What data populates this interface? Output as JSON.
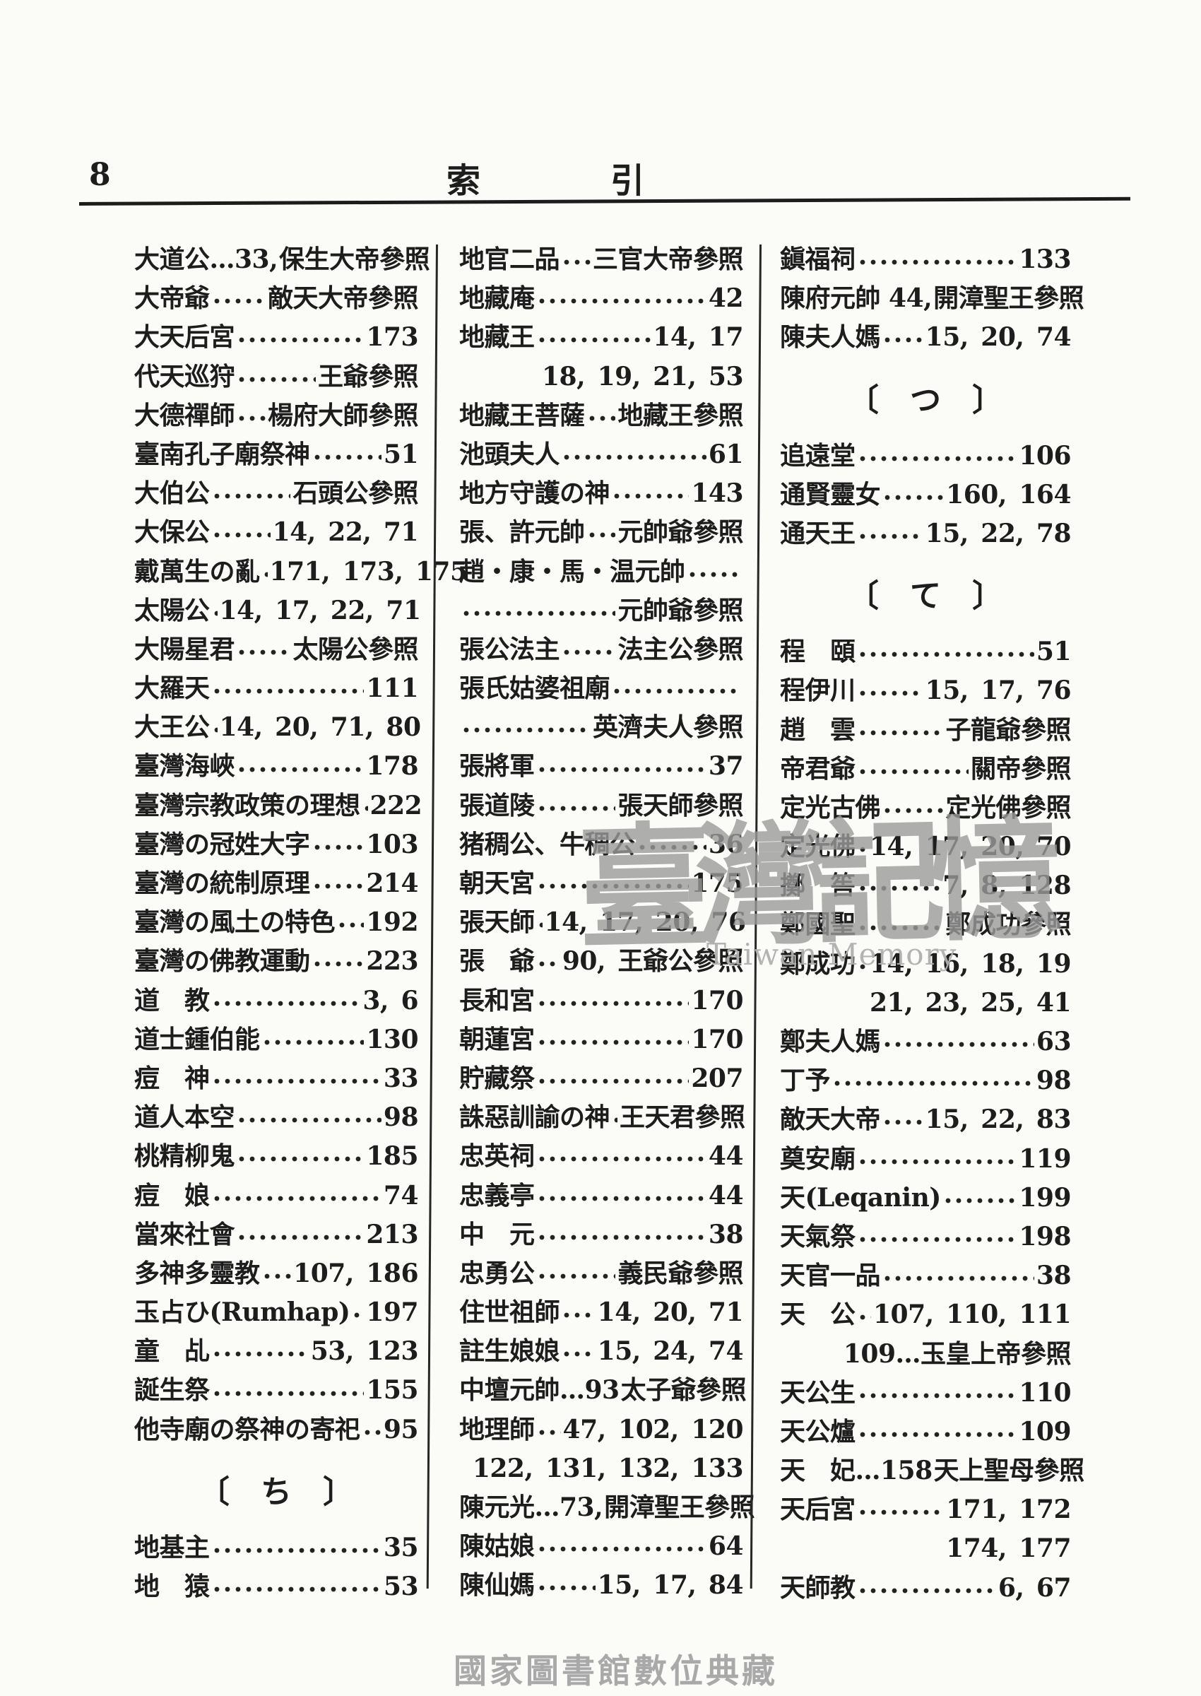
{
  "header": {
    "page_number": "8",
    "title_char_1": "索",
    "title_char_2": "引"
  },
  "watermark": {
    "main": "臺灣記憶",
    "sub": "Taiwan Memory"
  },
  "footer": {
    "text": "國家圖書館數位典藏"
  },
  "columns": [
    {
      "rows": [
        {
          "k": "e",
          "l": "大道公…33,",
          "lead": "s",
          "r": "保生大帝參照"
        },
        {
          "k": "e",
          "l": "大帝爺",
          "lead": "d",
          "r": "敵天大帝參照"
        },
        {
          "k": "e",
          "l": "大天后宮",
          "lead": "d",
          "r": "173"
        },
        {
          "k": "e",
          "l": "代天巡狩",
          "lead": "d",
          "r": "王爺參照"
        },
        {
          "k": "e",
          "l": "大德禪師",
          "lead": "d",
          "r": "楊府大師參照"
        },
        {
          "k": "e",
          "l": "臺南孔子廟祭神",
          "lead": "d",
          "r": "51"
        },
        {
          "k": "e",
          "l": "大伯公",
          "lead": "d",
          "r": "石頭公參照"
        },
        {
          "k": "e",
          "l": "大保公",
          "lead": "d",
          "r": "14, 22, 71"
        },
        {
          "k": "e",
          "l": "戴萬生の亂",
          "lead": "d",
          "r": "171, 173, 175"
        },
        {
          "k": "e",
          "l": "太陽公",
          "lead": "d",
          "r": "14, 17, 22, 71"
        },
        {
          "k": "e",
          "l": "大陽星君",
          "lead": "d",
          "r": "太陽公參照"
        },
        {
          "k": "e",
          "l": "大羅天",
          "lead": "d",
          "r": "111"
        },
        {
          "k": "e",
          "l": "大王公",
          "lead": "d",
          "r": "14, 20, 71, 80"
        },
        {
          "k": "e",
          "l": "臺灣海峽",
          "lead": "d",
          "r": "178"
        },
        {
          "k": "e",
          "l": "臺灣宗教政策の理想",
          "lead": "d",
          "r": "222"
        },
        {
          "k": "e",
          "l": "臺灣の冠姓大字",
          "lead": "d",
          "r": "103"
        },
        {
          "k": "e",
          "l": "臺灣の統制原理",
          "lead": "d",
          "r": "214"
        },
        {
          "k": "e",
          "l": "臺灣の風土の特色",
          "lead": "d",
          "r": "192"
        },
        {
          "k": "e",
          "l": "臺灣の佛教運動",
          "lead": "d",
          "r": "223"
        },
        {
          "k": "e",
          "l": "道　教",
          "lead": "d",
          "r": "3, 6"
        },
        {
          "k": "e",
          "l": "道士鍾伯能",
          "lead": "d",
          "r": "130"
        },
        {
          "k": "e",
          "l": "痘　神",
          "lead": "d",
          "r": "33"
        },
        {
          "k": "e",
          "l": "道人本空",
          "lead": "d",
          "r": "98"
        },
        {
          "k": "e",
          "l": "桃精柳鬼",
          "lead": "d",
          "r": "185"
        },
        {
          "k": "e",
          "l": "痘　娘",
          "lead": "d",
          "r": "74"
        },
        {
          "k": "e",
          "l": "當來社會",
          "lead": "d",
          "r": "213"
        },
        {
          "k": "e",
          "l": "多神多靈教",
          "lead": "d",
          "r": "107, 186"
        },
        {
          "k": "e",
          "l": "玉占ひ(Rumhap)",
          "lead": "d",
          "r": "197"
        },
        {
          "k": "e",
          "l": "童　乩",
          "lead": "d",
          "r": "53, 123"
        },
        {
          "k": "e",
          "l": "誕生祭",
          "lead": "d",
          "r": "155"
        },
        {
          "k": "e",
          "l": "他寺廟の祭神の寄祀",
          "lead": "d",
          "r": "95"
        },
        {
          "k": "s",
          "label": "〔　ち　〕"
        },
        {
          "k": "e",
          "l": "地基主",
          "lead": "d",
          "r": "35"
        },
        {
          "k": "e",
          "l": "地　猿",
          "lead": "d",
          "r": "53"
        }
      ]
    },
    {
      "rows": [
        {
          "k": "e",
          "l": "地官二品",
          "lead": "d",
          "r": "三官大帝參照"
        },
        {
          "k": "e",
          "l": "地藏庵",
          "lead": "d",
          "r": "42"
        },
        {
          "k": "e",
          "l": "地藏王",
          "lead": "d",
          "r": "14, 17"
        },
        {
          "k": "e",
          "l": "",
          "lead": "s",
          "r": "18, 19, 21, 53"
        },
        {
          "k": "e",
          "l": "地藏王菩薩",
          "lead": "d",
          "r": "地藏王參照"
        },
        {
          "k": "e",
          "l": "池頭夫人",
          "lead": "d",
          "r": "61"
        },
        {
          "k": "e",
          "l": "地方守護の神",
          "lead": "d",
          "r": "143"
        },
        {
          "k": "e",
          "l": "張、許元帥",
          "lead": "d",
          "r": "元帥爺參照"
        },
        {
          "k": "e",
          "l": "趙・康・馬・温元帥",
          "lead": "d",
          "r": ""
        },
        {
          "k": "e",
          "l": "",
          "lead": "d",
          "r": "元帥爺參照"
        },
        {
          "k": "e",
          "l": "張公法主",
          "lead": "d",
          "r": "法主公參照"
        },
        {
          "k": "e",
          "l": "張氏姑婆祖廟",
          "lead": "d",
          "r": ""
        },
        {
          "k": "e",
          "l": "",
          "lead": "d",
          "r": "英濟夫人參照"
        },
        {
          "k": "e",
          "l": "張將軍",
          "lead": "d",
          "r": "37"
        },
        {
          "k": "e",
          "l": "張道陵",
          "lead": "d",
          "r": "張天師參照"
        },
        {
          "k": "e",
          "l": "猪稠公、牛稠公",
          "lead": "d",
          "r": "36"
        },
        {
          "k": "e",
          "l": "朝天宮",
          "lead": "d",
          "r": "175"
        },
        {
          "k": "e",
          "l": "張天師",
          "lead": "d",
          "r": "14, 17, 20, 76"
        },
        {
          "k": "e",
          "l": "張　爺",
          "lead": "d",
          "r": "90, 王爺公參照"
        },
        {
          "k": "e",
          "l": "長和宮",
          "lead": "d",
          "r": "170"
        },
        {
          "k": "e",
          "l": "朝蓮宮",
          "lead": "d",
          "r": "170"
        },
        {
          "k": "e",
          "l": "貯藏祭",
          "lead": "d",
          "r": "207"
        },
        {
          "k": "e",
          "l": "誅惡訓諭の神",
          "lead": "d",
          "r": "王天君參照"
        },
        {
          "k": "e",
          "l": "忠英祠",
          "lead": "d",
          "r": "44"
        },
        {
          "k": "e",
          "l": "忠義亭",
          "lead": "d",
          "r": "44"
        },
        {
          "k": "e",
          "l": "中　元",
          "lead": "d",
          "r": "38"
        },
        {
          "k": "e",
          "l": "忠勇公",
          "lead": "d",
          "r": "義民爺參照"
        },
        {
          "k": "e",
          "l": "住世祖師",
          "lead": "d",
          "r": "14, 20, 71"
        },
        {
          "k": "e",
          "l": "註生娘娘",
          "lead": "d",
          "r": "15, 24, 74"
        },
        {
          "k": "e",
          "l": "中壇元帥…93",
          "lead": "s",
          "r": "太子爺參照"
        },
        {
          "k": "e",
          "l": "地理師",
          "lead": "d",
          "r": "47, 102, 120"
        },
        {
          "k": "e",
          "l": "",
          "lead": "s",
          "r": "122, 131, 132, 133"
        },
        {
          "k": "e",
          "l": "陳元光…73,",
          "lead": "s",
          "r": "開漳聖王參照"
        },
        {
          "k": "e",
          "l": "陳姑娘",
          "lead": "d",
          "r": "64"
        },
        {
          "k": "e",
          "l": "陳仙媽",
          "lead": "d",
          "r": "15, 17, 84"
        }
      ]
    },
    {
      "rows": [
        {
          "k": "e",
          "l": "鎭福祠",
          "lead": "d",
          "r": "133"
        },
        {
          "k": "e",
          "l": "陳府元帥 44,",
          "lead": "s",
          "r": "開漳聖王參照"
        },
        {
          "k": "e",
          "l": "陳夫人媽",
          "lead": "d",
          "r": "15, 20, 74"
        },
        {
          "k": "s",
          "label": "〔　つ　〕"
        },
        {
          "k": "e",
          "l": "追遠堂",
          "lead": "d",
          "r": "106"
        },
        {
          "k": "e",
          "l": "通賢靈女",
          "lead": "d",
          "r": "160, 164"
        },
        {
          "k": "e",
          "l": "通天王",
          "lead": "d",
          "r": "15, 22, 78"
        },
        {
          "k": "s",
          "label": "〔　て　〕"
        },
        {
          "k": "e",
          "l": "程　頤",
          "lead": "d",
          "r": "51"
        },
        {
          "k": "e",
          "l": "程伊川",
          "lead": "d",
          "r": "15, 17, 76"
        },
        {
          "k": "e",
          "l": "趙　雲",
          "lead": "d",
          "r": "子龍爺參照"
        },
        {
          "k": "e",
          "l": "帝君爺",
          "lead": "d",
          "r": "關帝參照"
        },
        {
          "k": "e",
          "l": "定光古佛",
          "lead": "d",
          "r": "定光佛參照"
        },
        {
          "k": "e",
          "l": "定光佛",
          "lead": "d",
          "r": "14, 17, 20, 70"
        },
        {
          "k": "e",
          "l": "擲　筶",
          "lead": "d",
          "r": "7, 8, 128"
        },
        {
          "k": "e",
          "l": "鄭國聖",
          "lead": "d",
          "r": "鄭成功參照"
        },
        {
          "k": "e",
          "l": "鄭成功",
          "lead": "d",
          "r": "14, 16, 18, 19"
        },
        {
          "k": "e",
          "l": "",
          "lead": "s",
          "r": "21, 23, 25, 41"
        },
        {
          "k": "e",
          "l": "鄭夫人媽",
          "lead": "d",
          "r": "63"
        },
        {
          "k": "e",
          "l": "丁予",
          "lead": "d",
          "r": "98"
        },
        {
          "k": "e",
          "l": "敵天大帝",
          "lead": "d",
          "r": "15, 22, 83"
        },
        {
          "k": "e",
          "l": "奠安廟",
          "lead": "d",
          "r": "119"
        },
        {
          "k": "e",
          "l": "天(Leqanin)",
          "lead": "d",
          "r": "199"
        },
        {
          "k": "e",
          "l": "天氣祭",
          "lead": "d",
          "r": "198"
        },
        {
          "k": "e",
          "l": "天官一品",
          "lead": "d",
          "r": "38"
        },
        {
          "k": "e",
          "l": "天　公",
          "lead": "d",
          "r": "107, 110, 111"
        },
        {
          "k": "e",
          "l": "",
          "lead": "s",
          "r": "109…玉皇上帝參照"
        },
        {
          "k": "e",
          "l": "天公生",
          "lead": "d",
          "r": "110"
        },
        {
          "k": "e",
          "l": "天公爐",
          "lead": "d",
          "r": "109"
        },
        {
          "k": "e",
          "l": "天　妃…158",
          "lead": "s",
          "r": "天上聖母參照"
        },
        {
          "k": "e",
          "l": "天后宮",
          "lead": "d",
          "r": "171, 172"
        },
        {
          "k": "e",
          "l": "",
          "lead": "s",
          "r": "174, 177"
        },
        {
          "k": "e",
          "l": "天師教",
          "lead": "d",
          "r": "6, 67"
        }
      ]
    }
  ]
}
